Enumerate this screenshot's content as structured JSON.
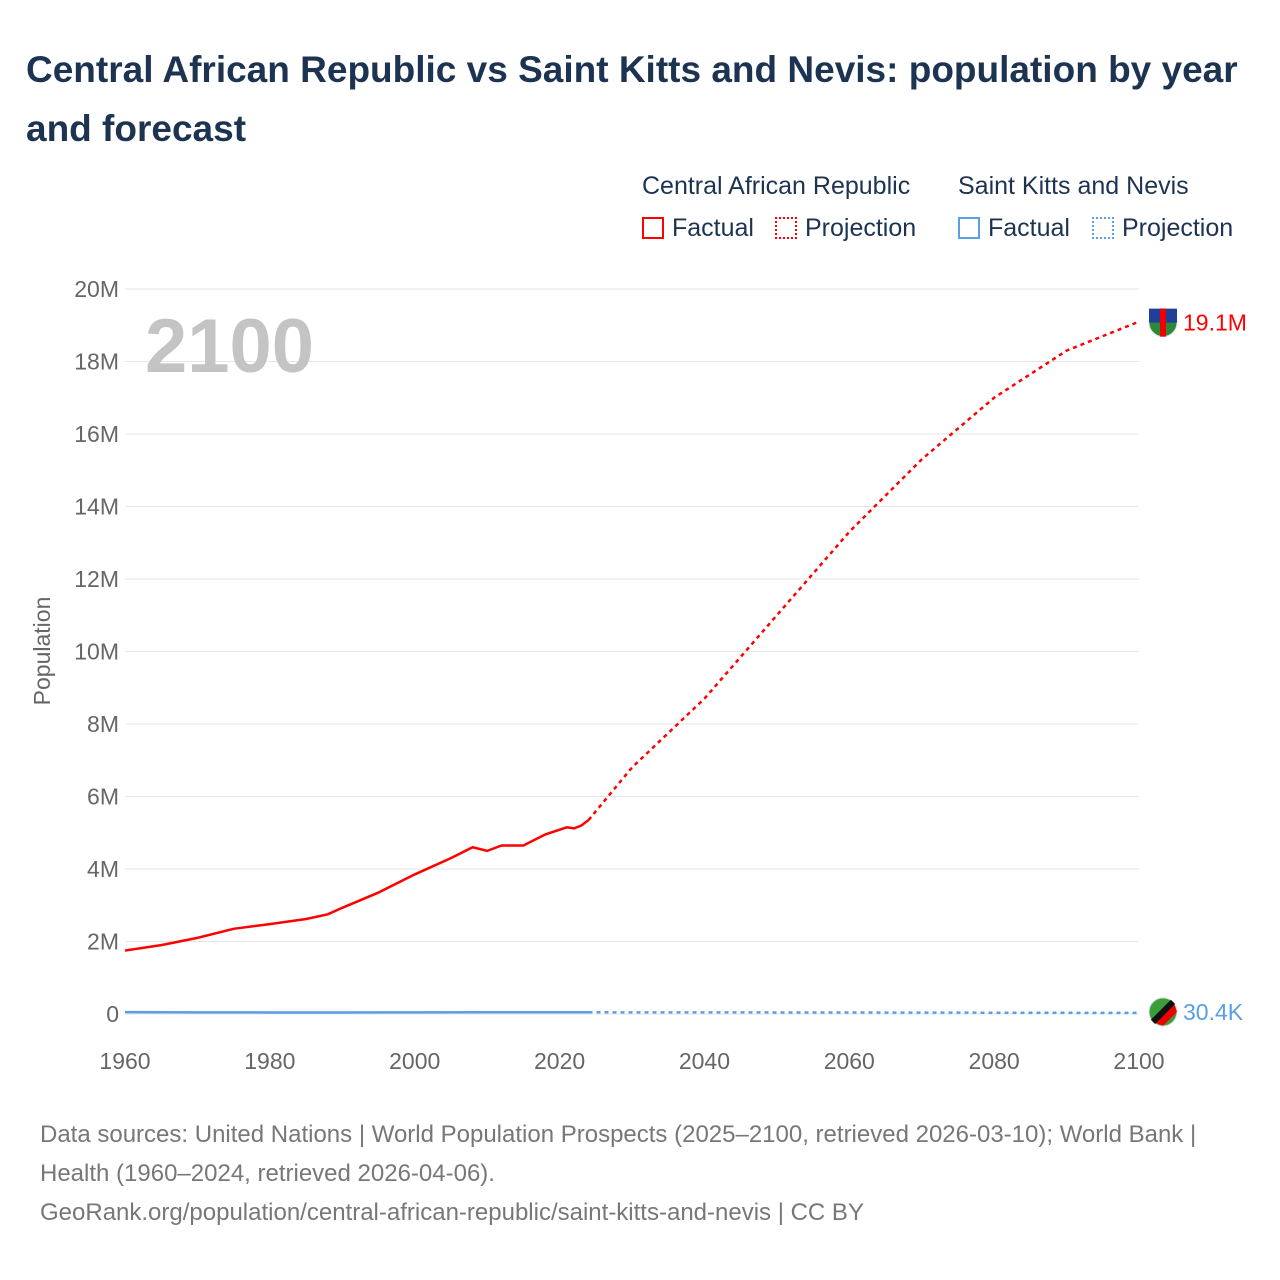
{
  "title": "Central African Republic vs Saint Kitts and Nevis: population by year and forecast",
  "legend": {
    "groups": [
      {
        "name": "Central African Republic",
        "factual": "Factual",
        "projection": "Projection",
        "color": "#ff0000"
      },
      {
        "name": "Saint Kitts and Nevis",
        "factual": "Factual",
        "projection": "Projection",
        "color": "#5b9ee6"
      }
    ]
  },
  "year_label": "2100",
  "source": "Data sources: United Nations | World Population Prospects (2025–2100, retrieved 2026-03-10); World Bank | Health (1960–2024, retrieved 2026-04-06).",
  "url": "GeoRank.org/population/central-african-republic/saint-kitts-and-nevis | CC BY",
  "chart_data": {
    "type": "line",
    "title": "Central African Republic vs Saint Kitts and Nevis: population by year and forecast",
    "xlabel": "",
    "ylabel": "Population",
    "xlim": [
      1960,
      2100
    ],
    "ylim": [
      0,
      20000000
    ],
    "xticks": [
      "1960",
      "1980",
      "2000",
      "2020",
      "2040",
      "2060",
      "2080",
      "2100"
    ],
    "yticks": [
      "0",
      "2M",
      "4M",
      "6M",
      "8M",
      "10M",
      "12M",
      "14M",
      "16M",
      "18M",
      "20M"
    ],
    "grid": true,
    "series": [
      {
        "name": "Central African Republic",
        "color": "#ff0000",
        "end_label": "19.1M",
        "factual": [
          [
            1960,
            1750000
          ],
          [
            1965,
            1900000
          ],
          [
            1970,
            2100000
          ],
          [
            1975,
            2350000
          ],
          [
            1980,
            2480000
          ],
          [
            1985,
            2620000
          ],
          [
            1988,
            2750000
          ],
          [
            1990,
            2930000
          ],
          [
            1995,
            3350000
          ],
          [
            2000,
            3850000
          ],
          [
            2005,
            4300000
          ],
          [
            2008,
            4600000
          ],
          [
            2010,
            4500000
          ],
          [
            2012,
            4650000
          ],
          [
            2015,
            4650000
          ],
          [
            2018,
            4950000
          ],
          [
            2021,
            5150000
          ],
          [
            2022,
            5120000
          ],
          [
            2023,
            5200000
          ],
          [
            2024,
            5350000
          ]
        ],
        "projection": [
          [
            2024,
            5350000
          ],
          [
            2030,
            6800000
          ],
          [
            2040,
            8700000
          ],
          [
            2050,
            11000000
          ],
          [
            2060,
            13300000
          ],
          [
            2070,
            15300000
          ],
          [
            2080,
            17000000
          ],
          [
            2090,
            18300000
          ],
          [
            2100,
            19100000
          ]
        ]
      },
      {
        "name": "Saint Kitts and Nevis",
        "color": "#5b9ee6",
        "end_label": "30.4K",
        "factual": [
          [
            1960,
            51000
          ],
          [
            1970,
            46000
          ],
          [
            1980,
            43000
          ],
          [
            1990,
            41000
          ],
          [
            2000,
            45000
          ],
          [
            2010,
            49000
          ],
          [
            2024,
            47000
          ]
        ],
        "projection": [
          [
            2024,
            47000
          ],
          [
            2050,
            43000
          ],
          [
            2075,
            37000
          ],
          [
            2100,
            30400
          ]
        ]
      }
    ]
  }
}
